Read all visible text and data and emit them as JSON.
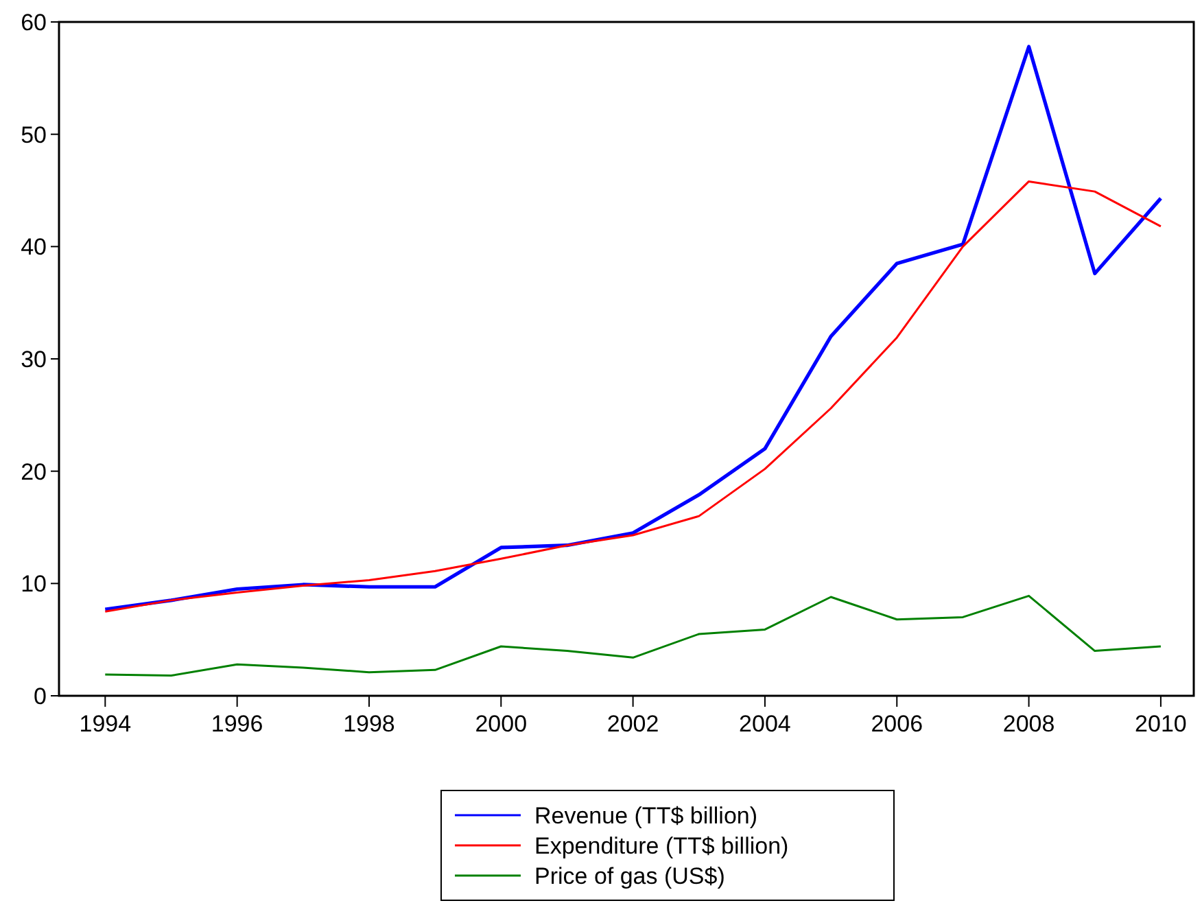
{
  "chart_data": {
    "type": "line",
    "x": [
      1994,
      1995,
      1996,
      1997,
      1998,
      1999,
      2000,
      2001,
      2002,
      2003,
      2004,
      2005,
      2006,
      2007,
      2008,
      2009,
      2010
    ],
    "series": [
      {
        "name": "Revenue (TT$ billion)",
        "color": "#0000ff",
        "values": [
          7.7,
          8.5,
          9.5,
          9.9,
          9.7,
          9.7,
          13.2,
          13.4,
          14.5,
          17.9,
          22.0,
          32.0,
          38.5,
          40.2,
          57.8,
          37.6,
          44.3
        ]
      },
      {
        "name": "Expenditure (TT$ billion)",
        "color": "#ff0000",
        "values": [
          7.5,
          8.5,
          9.2,
          9.8,
          10.3,
          11.1,
          12.2,
          13.4,
          14.3,
          16.0,
          20.2,
          25.6,
          31.9,
          40.0,
          45.8,
          44.9,
          41.8
        ]
      },
      {
        "name": "Price of gas (US$)",
        "color": "#008000",
        "values": [
          1.9,
          1.8,
          2.8,
          2.5,
          2.1,
          2.3,
          4.4,
          4.0,
          3.4,
          5.5,
          5.9,
          8.8,
          6.8,
          7.0,
          8.9,
          4.0,
          4.4
        ]
      }
    ],
    "xlim": [
      1993.3,
      2010.5
    ],
    "xticks": [
      1994,
      1996,
      1998,
      2000,
      2002,
      2004,
      2006,
      2008,
      2010
    ],
    "ylim": [
      0,
      60
    ],
    "yticks": [
      0,
      10,
      20,
      30,
      40,
      50,
      60
    ],
    "grid": false,
    "legend": "bottom",
    "marker": "none",
    "line_style": "solid"
  }
}
